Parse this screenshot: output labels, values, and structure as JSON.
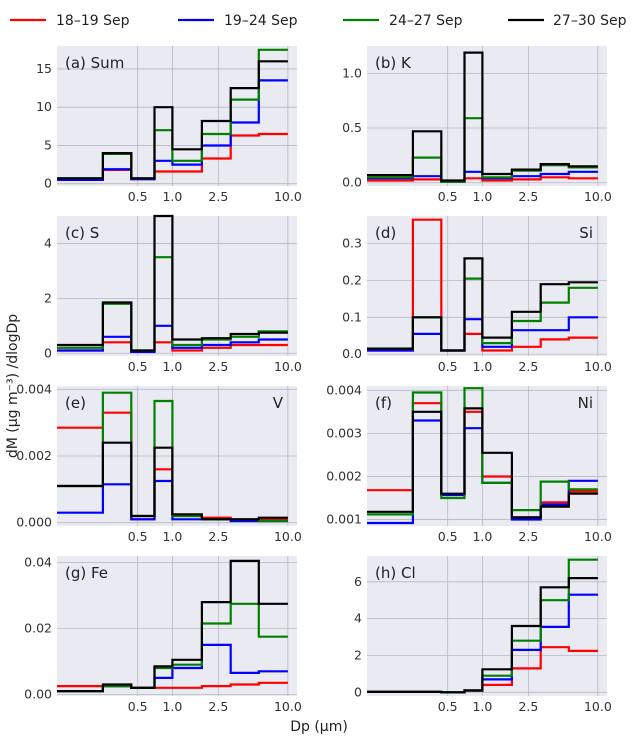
{
  "chart_data": {
    "type": "line",
    "step": true,
    "xlabel": "Dp (μm)",
    "ylabel": "dM (μg m⁻³) /dlogDp",
    "x_scale": "log",
    "xlim": [
      0.1,
      12
    ],
    "x_ticks": [
      0.5,
      1.0,
      2.5,
      10.0
    ],
    "x_tick_labels": [
      "0.5",
      "1.0",
      "2.5",
      "10.0"
    ],
    "bin_edges": [
      0.1,
      0.25,
      0.44,
      0.7,
      1.0,
      1.8,
      3.2,
      5.6,
      10.0
    ],
    "grid": true,
    "legend": {
      "placement": "top",
      "entries": [
        {
          "label": "18–19 Sep",
          "color": "#ff0000"
        },
        {
          "label": "19–24 Sep",
          "color": "#0000ff"
        },
        {
          "label": "24–27 Sep",
          "color": "#008000"
        },
        {
          "label": "27–30 Sep",
          "color": "#000000"
        }
      ]
    },
    "panels": [
      {
        "label": "(a) Sum",
        "label_position": "left",
        "ylim": [
          -0.3,
          18
        ],
        "yticks": [
          0,
          5,
          10,
          15
        ],
        "ytick_labels": [
          "0",
          "5",
          "10",
          "15"
        ],
        "series": [
          {
            "name": "18–19 Sep",
            "values": [
              0.5,
              1.8,
              0.6,
              1.6,
              1.6,
              3.3,
              6.3,
              6.5
            ]
          },
          {
            "name": "19–24 Sep",
            "values": [
              0.5,
              1.9,
              0.6,
              3.0,
              2.5,
              5.0,
              8.0,
              13.5
            ]
          },
          {
            "name": "24–27 Sep",
            "values": [
              0.7,
              3.9,
              0.7,
              7.0,
              3.0,
              6.5,
              11.0,
              17.5
            ]
          },
          {
            "name": "27–30 Sep",
            "values": [
              0.7,
              4.0,
              0.7,
              10.0,
              4.5,
              8.2,
              12.5,
              16.0
            ]
          }
        ]
      },
      {
        "label": "(b) K",
        "label_position": "left",
        "ylim": [
          -0.03,
          1.25
        ],
        "yticks": [
          0.0,
          0.5,
          1.0
        ],
        "ytick_labels": [
          "0.0",
          "0.5",
          "1.0"
        ],
        "series": [
          {
            "name": "18–19 Sep",
            "values": [
              0.02,
              0.03,
              0.01,
              0.04,
              0.02,
              0.03,
              0.05,
              0.04
            ]
          },
          {
            "name": "19–24 Sep",
            "values": [
              0.04,
              0.06,
              0.01,
              0.1,
              0.04,
              0.06,
              0.08,
              0.1
            ]
          },
          {
            "name": "24–27 Sep",
            "values": [
              0.05,
              0.23,
              0.01,
              0.59,
              0.05,
              0.11,
              0.16,
              0.14
            ]
          },
          {
            "name": "27–30 Sep",
            "values": [
              0.07,
              0.47,
              0.02,
              1.19,
              0.08,
              0.12,
              0.17,
              0.15
            ]
          }
        ]
      },
      {
        "label": "(c) S",
        "label_position": "left",
        "ylim": [
          -0.1,
          5.0
        ],
        "yticks": [
          0,
          2,
          4
        ],
        "ytick_labels": [
          "0",
          "2",
          "4"
        ],
        "series": [
          {
            "name": "18–19 Sep",
            "values": [
              0.1,
              0.4,
              0.05,
              0.4,
              0.1,
              0.2,
              0.3,
              0.3
            ]
          },
          {
            "name": "19–24 Sep",
            "values": [
              0.1,
              0.6,
              0.05,
              1.0,
              0.2,
              0.3,
              0.4,
              0.5
            ]
          },
          {
            "name": "24–27 Sep",
            "values": [
              0.2,
              1.8,
              0.1,
              3.5,
              0.3,
              0.5,
              0.6,
              0.8
            ]
          },
          {
            "name": "27–30 Sep",
            "values": [
              0.3,
              1.85,
              0.1,
              5.0,
              0.5,
              0.55,
              0.7,
              0.75
            ]
          }
        ]
      },
      {
        "label": "(d)",
        "label_position": "left",
        "label2": "Si",
        "ylim": [
          -0.005,
          0.375
        ],
        "yticks": [
          0.0,
          0.1,
          0.2,
          0.3
        ],
        "ytick_labels": [
          "0.0",
          "0.1",
          "0.2",
          "0.3"
        ],
        "series": [
          {
            "name": "18–19 Sep",
            "values": [
              0.01,
              0.365,
              0.01,
              0.055,
              0.01,
              0.02,
              0.04,
              0.045
            ]
          },
          {
            "name": "19–24 Sep",
            "values": [
              0.01,
              0.055,
              0.01,
              0.095,
              0.02,
              0.065,
              0.065,
              0.1
            ]
          },
          {
            "name": "24–27 Sep",
            "values": [
              0.015,
              0.1,
              0.01,
              0.205,
              0.03,
              0.09,
              0.14,
              0.18
            ]
          },
          {
            "name": "27–30 Sep",
            "values": [
              0.015,
              0.1,
              0.01,
              0.26,
              0.045,
              0.115,
              0.19,
              0.195
            ]
          }
        ]
      },
      {
        "label": "(e)",
        "label_position": "left",
        "label2": "V",
        "ylim": [
          -0.0001,
          0.0041
        ],
        "yticks": [
          0.0,
          0.002,
          0.004
        ],
        "ytick_labels": [
          "0.000",
          "0.002",
          "0.004"
        ],
        "series": [
          {
            "name": "18–19 Sep",
            "values": [
              0.00285,
              0.0033,
              0.0001,
              0.0016,
              0.0002,
              0.00015,
              0.0001,
              0.0001
            ]
          },
          {
            "name": "19–24 Sep",
            "values": [
              0.0003,
              0.00115,
              0.0001,
              0.00125,
              0.0001,
              0.0001,
              5e-05,
              5e-05
            ]
          },
          {
            "name": "24–27 Sep",
            "values": [
              0.0011,
              0.0039,
              0.0002,
              0.00365,
              0.0002,
              0.0001,
              0.0001,
              5e-05
            ]
          },
          {
            "name": "27–30 Sep",
            "values": [
              0.0011,
              0.0024,
              0.0002,
              0.00225,
              0.00025,
              0.0001,
              0.0001,
              0.00015
            ]
          }
        ]
      },
      {
        "label": "(f)",
        "label_position": "left",
        "label2": "Ni",
        "ylim": [
          0.00085,
          0.0041
        ],
        "yticks": [
          0.001,
          0.002,
          0.003,
          0.004
        ],
        "ytick_labels": [
          "0.001",
          "0.002",
          "0.003",
          "0.004"
        ],
        "series": [
          {
            "name": "18–19 Sep",
            "values": [
              0.00168,
              0.0037,
              0.00158,
              0.0035,
              0.002,
              0.00105,
              0.0014,
              0.00165
            ]
          },
          {
            "name": "19–24 Sep",
            "values": [
              0.00092,
              0.0033,
              0.00157,
              0.00312,
              0.00185,
              0.001,
              0.00135,
              0.0019
            ]
          },
          {
            "name": "24–27 Sep",
            "values": [
              0.00112,
              0.00395,
              0.0015,
              0.00405,
              0.00185,
              0.00122,
              0.00188,
              0.0017
            ]
          },
          {
            "name": "27–30 Sep",
            "values": [
              0.00118,
              0.0035,
              0.0016,
              0.00358,
              0.00255,
              0.00105,
              0.0013,
              0.0016
            ]
          }
        ]
      },
      {
        "label": "(g) Fe",
        "label_position": "left",
        "ylim": [
          -0.0005,
          0.042
        ],
        "yticks": [
          0.0,
          0.02,
          0.04
        ],
        "ytick_labels": [
          "0.00",
          "0.02",
          "0.04"
        ],
        "series": [
          {
            "name": "18–19 Sep",
            "values": [
              0.0025,
              0.0025,
              0.002,
              0.002,
              0.002,
              0.0025,
              0.003,
              0.0035
            ]
          },
          {
            "name": "19–24 Sep",
            "values": [
              0.001,
              0.0025,
              0.002,
              0.005,
              0.008,
              0.015,
              0.0065,
              0.007
            ]
          },
          {
            "name": "24–27 Sep",
            "values": [
              0.001,
              0.0025,
              0.002,
              0.008,
              0.009,
              0.0215,
              0.0275,
              0.0175
            ]
          },
          {
            "name": "27–30 Sep",
            "values": [
              0.001,
              0.003,
              0.002,
              0.0085,
              0.0105,
              0.028,
              0.0405,
              0.0275
            ]
          }
        ]
      },
      {
        "label": "(h) Cl",
        "label_position": "left",
        "ylim": [
          -0.2,
          7.4
        ],
        "yticks": [
          0,
          2,
          4,
          6
        ],
        "ytick_labels": [
          "0",
          "2",
          "4",
          "6"
        ],
        "series": [
          {
            "name": "18–19 Sep",
            "values": [
              0.02,
              0.02,
              0.0,
              0.1,
              0.4,
              1.3,
              2.45,
              2.25
            ]
          },
          {
            "name": "19–24 Sep",
            "values": [
              0.02,
              0.02,
              0.0,
              0.1,
              0.7,
              2.3,
              3.55,
              5.3
            ]
          },
          {
            "name": "24–27 Sep",
            "values": [
              0.02,
              0.02,
              0.0,
              0.1,
              0.9,
              2.8,
              5.0,
              7.2
            ]
          },
          {
            "name": "27–30 Sep",
            "values": [
              0.02,
              0.02,
              0.0,
              0.1,
              1.25,
              3.6,
              5.7,
              6.2
            ]
          }
        ]
      }
    ]
  }
}
